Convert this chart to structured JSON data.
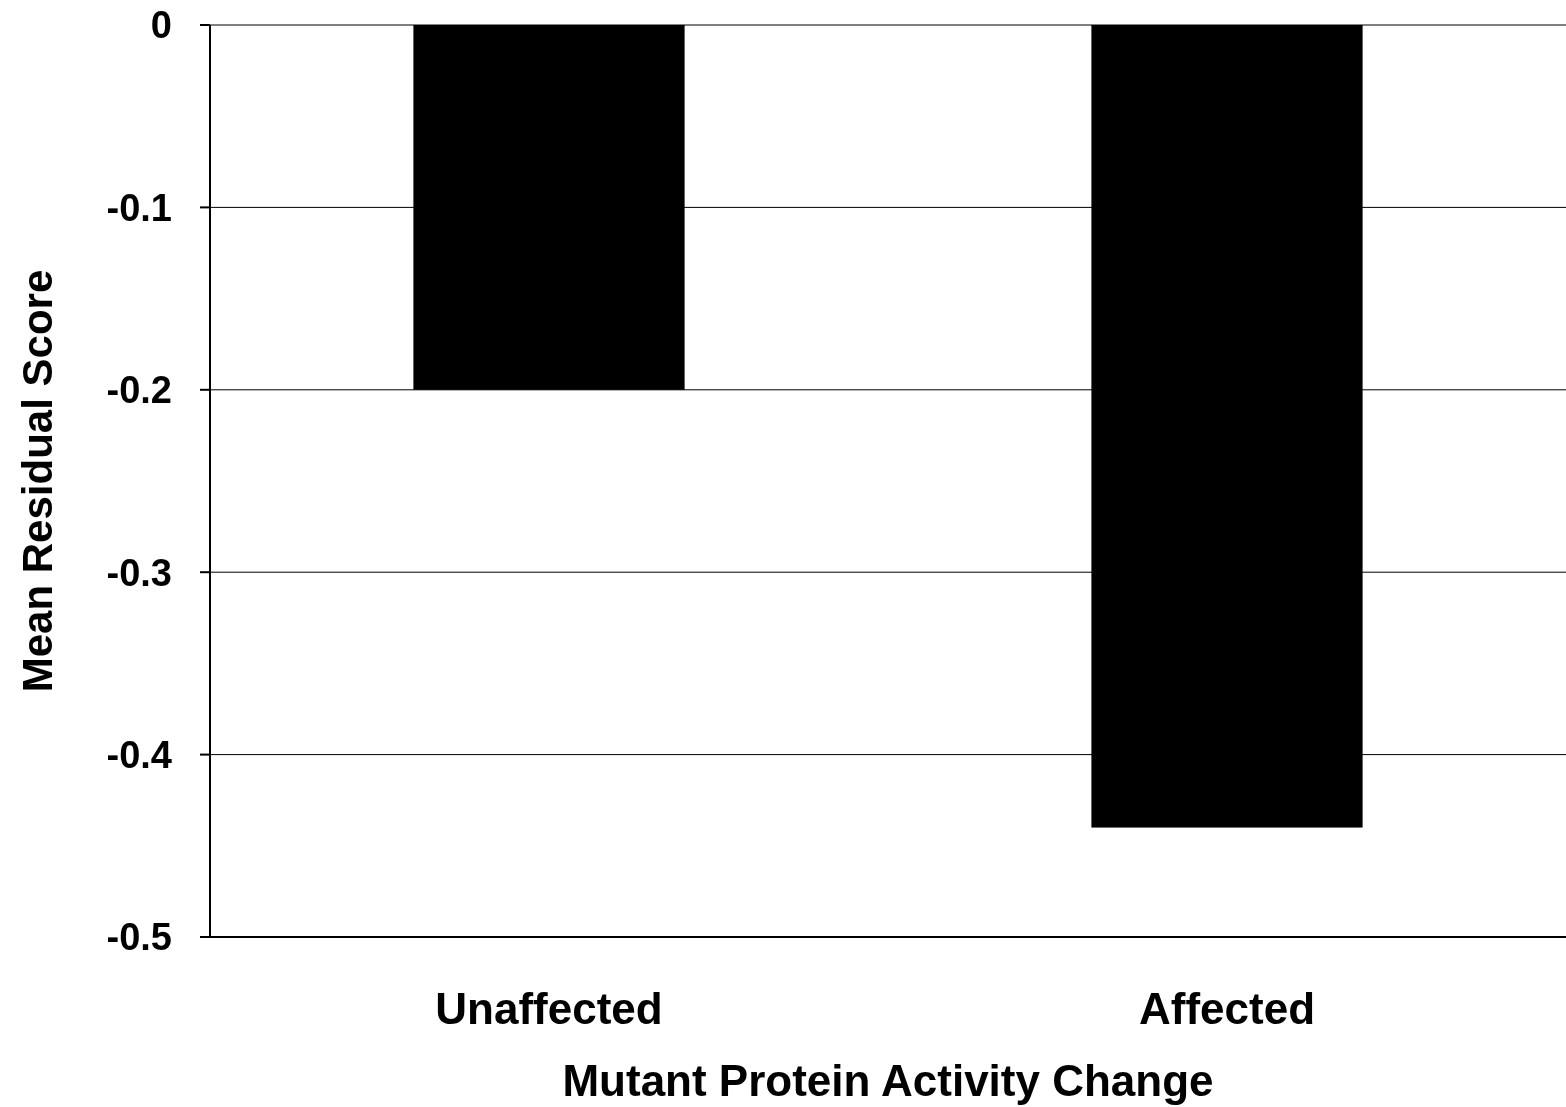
{
  "chart_data": {
    "type": "bar",
    "xlabel": "Mutant Protein Activity Change",
    "ylabel": "Mean Residual Score",
    "categories": [
      "Unaffected",
      "Affected"
    ],
    "series": [
      {
        "color": "#000000",
        "values": [
          -0.2,
          -0.44
        ]
      }
    ],
    "ylim": [
      -0.5,
      0
    ],
    "yticks": [
      0,
      -0.1,
      -0.2,
      -0.3,
      -0.4,
      -0.5
    ],
    "grid": "y"
  }
}
